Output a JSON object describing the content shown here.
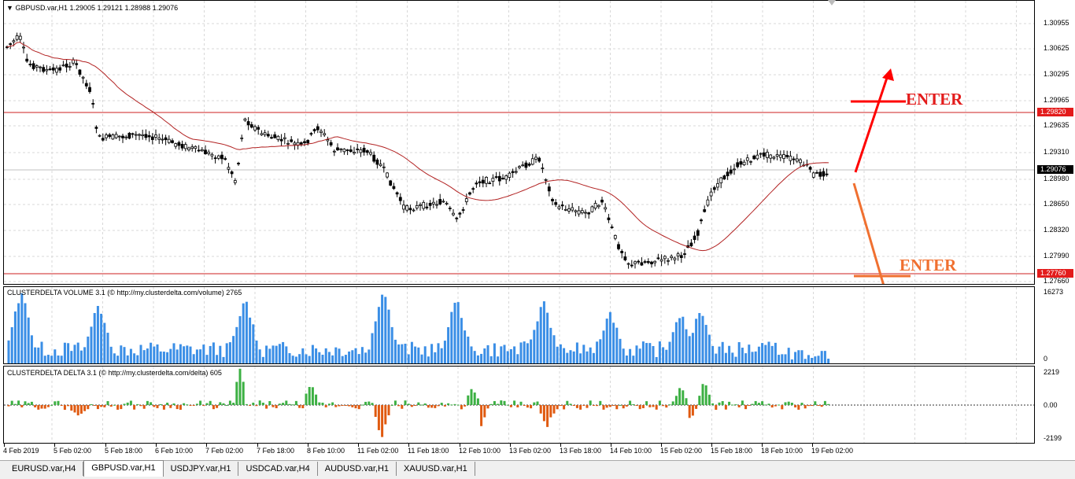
{
  "chart_header": {
    "symbol_label": "GBPUSD.var,H1",
    "ohlc": "1.29005 1.29121 1.28988 1.29076"
  },
  "price_axis": {
    "ticks": [
      "1.30955",
      "1.30625",
      "1.30295",
      "1.29965",
      "1.29635",
      "1.29310",
      "1.28980",
      "1.28650",
      "1.28320",
      "1.27990",
      "1.27660"
    ],
    "resistance_label": "1.29820",
    "current_label": "1.29076",
    "support_label": "1.27760"
  },
  "annotations": {
    "enter_up": "ENTER",
    "enter_down": "ENTER",
    "up_color": "#ff0000",
    "down_color": "#f07030"
  },
  "volume_panel": {
    "title": "CLUSTERDELTA VOLUME 3.1 (© http://my.clusterdelta.com/volume) 2765",
    "max_label": "16273",
    "min_label": "0",
    "bar_color": "#3a8ee6"
  },
  "delta_panel": {
    "title": "CLUSTERDELTA DELTA 3.1 (© http://my.clusterdelta.com/delta) 605",
    "max_label": "2219",
    "zero_label": "0.00",
    "min_label": "-2199",
    "pos_color": "#3cb043",
    "neg_color": "#e05a10"
  },
  "time_axis": [
    "4 Feb 2019",
    "5 Feb 02:00",
    "5 Feb 18:00",
    "6 Feb 10:00",
    "7 Feb 02:00",
    "7 Feb 18:00",
    "8 Feb 10:00",
    "11 Feb 02:00",
    "11 Feb 18:00",
    "12 Feb 10:00",
    "13 Feb 02:00",
    "13 Feb 18:00",
    "14 Feb 10:00",
    "15 Feb 02:00",
    "15 Feb 18:00",
    "18 Feb 10:00",
    "19 Feb 02:00"
  ],
  "tabs": [
    "EURUSD.var,H4",
    "GBPUSD.var,H1",
    "USDJPY.var,H1",
    "USDCAD.var,H4",
    "AUDUSD.var,H1",
    "XAUUSD.var,H1"
  ],
  "active_tab": 1
}
